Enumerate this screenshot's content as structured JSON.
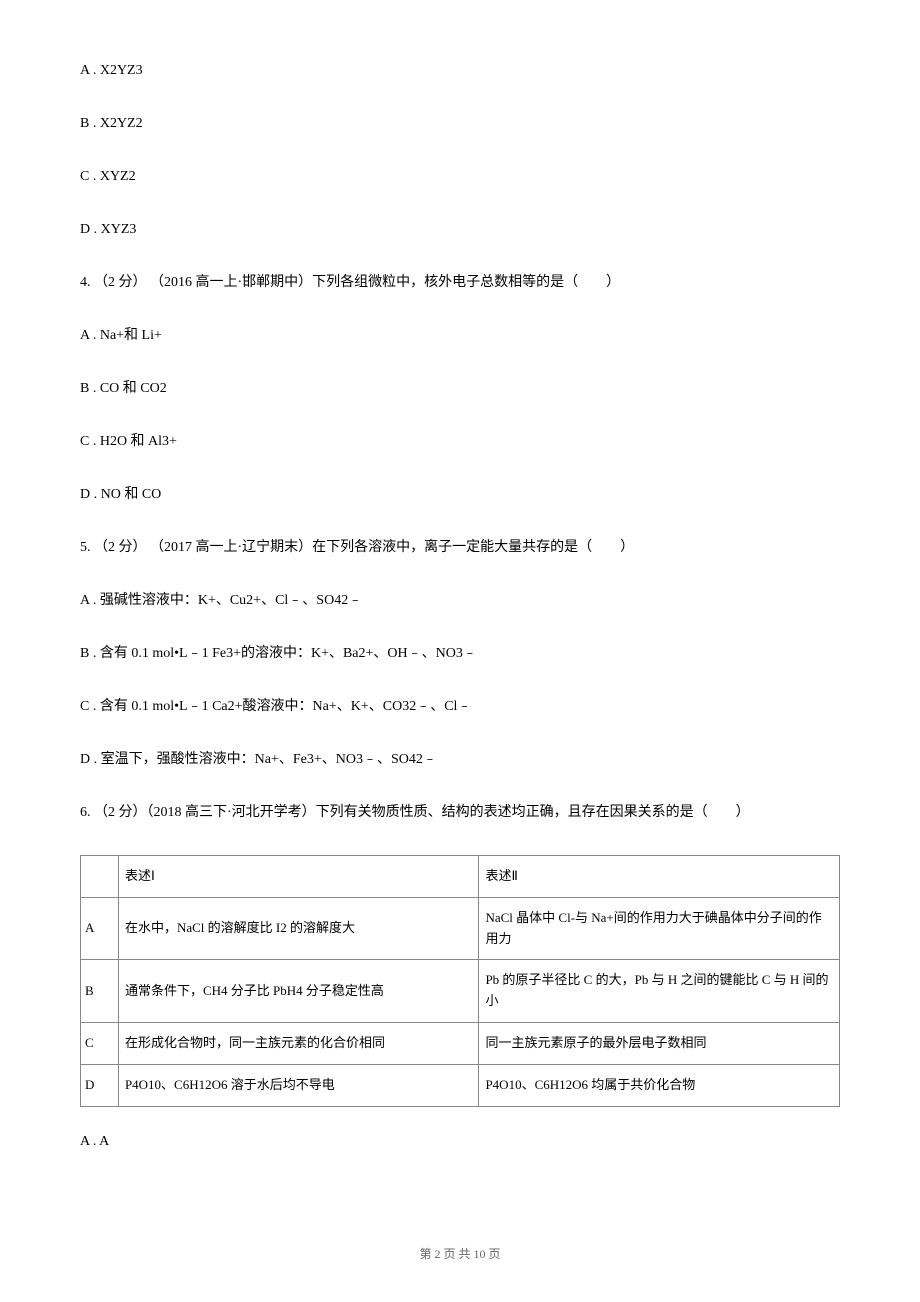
{
  "q3": {
    "options": {
      "a": "A .  X2YZ3",
      "b": "B .  X2YZ2",
      "c": "C .  XYZ2",
      "d": "D .  XYZ3"
    }
  },
  "q4": {
    "stem": "4.  （2 分） （2016 高一上·邯郸期中）下列各组微粒中，核外电子总数相等的是（　　）",
    "options": {
      "a": "A .  Na+和 Li+",
      "b": "B .  CO 和 CO2",
      "c": "C .  H2O  和 Al3+",
      "d": "D .  NO 和 CO"
    }
  },
  "q5": {
    "stem": "5.  （2 分） （2017 高一上·辽宁期末）在下列各溶液中，离子一定能大量共存的是（　　）",
    "options": {
      "a": "A .  强碱性溶液中：K+、Cu2+、Cl﹣、SO42﹣",
      "b": "B .  含有 0.1 mol•L﹣1 Fe3+的溶液中：K+、Ba2+、OH﹣、NO3﹣",
      "c": "C .  含有 0.1 mol•L﹣1 Ca2+酸溶液中：Na+、K+、CO32﹣、Cl﹣",
      "d": "D .  室温下，强酸性溶液中：Na+、Fe3+、NO3﹣、SO42﹣"
    }
  },
  "q6": {
    "stem": "6.  （2 分）（2018 高三下·河北开学考）下列有关物质性质、结构的表述均正确，且存在因果关系的是（　　）",
    "table": {
      "header": {
        "col1": "",
        "col2": "表述Ⅰ",
        "col3": "表述Ⅱ"
      },
      "rows": [
        {
          "label": "A",
          "stmt1": "在水中，NaCl 的溶解度比 I2 的溶解度大",
          "stmt2": "NaCl 晶体中 Cl-与 Na+间的作用力大于碘晶体中分子间的作用力"
        },
        {
          "label": "B",
          "stmt1": "通常条件下，CH4 分子比 PbH4 分子稳定性高",
          "stmt2": "Pb 的原子半径比 C 的大，Pb 与 H 之间的键能比 C 与 H 间的小"
        },
        {
          "label": "C",
          "stmt1": "在形成化合物时，同一主族元素的化合价相同",
          "stmt2": "同一主族元素原子的最外层电子数相同"
        },
        {
          "label": "D",
          "stmt1": "P4O10、C6H12O6 溶于水后均不导电",
          "stmt2": "P4O10、C6H12O6 均属于共价化合物"
        }
      ]
    },
    "options": {
      "a": "A .  A"
    }
  },
  "footer": "第 2 页 共 10 页"
}
